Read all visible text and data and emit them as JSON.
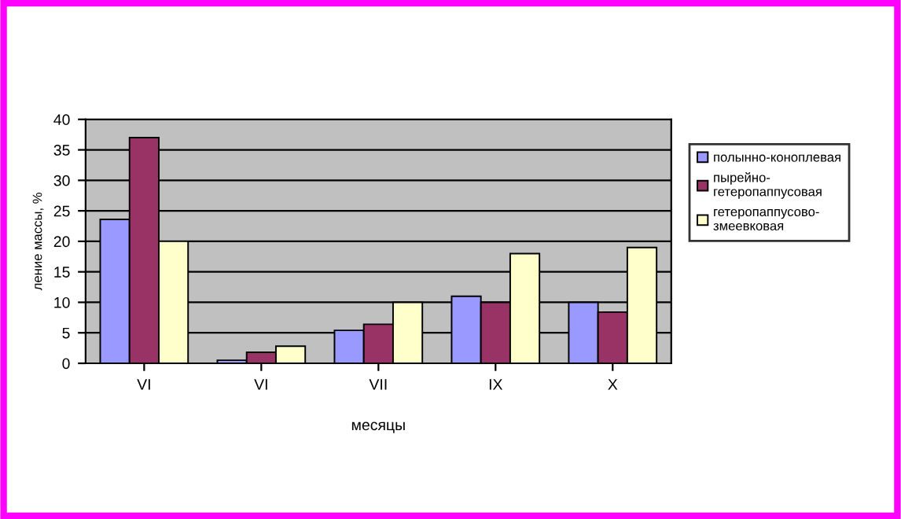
{
  "chart_data": {
    "type": "bar",
    "xlabel": "месяцы",
    "ylabel": "ление массы, %",
    "categories": [
      "VI",
      "VI",
      "VII",
      "IX",
      "X"
    ],
    "series": [
      {
        "name": "полынно-коноплевая",
        "color": "#9999ff",
        "values": [
          23.6,
          0.5,
          5.4,
          11,
          10
        ]
      },
      {
        "name": "пырейно-\nгетеропаппусовая",
        "color": "#993366",
        "values": [
          37,
          1.8,
          6.4,
          10,
          8.4
        ]
      },
      {
        "name": "гетеропаппусово-\nзмеевковая",
        "color": "#ffffcc",
        "values": [
          20,
          2.8,
          10,
          18,
          19
        ]
      }
    ],
    "ylim": [
      0,
      40
    ],
    "yticks": [
      0,
      5,
      10,
      15,
      20,
      25,
      30,
      35,
      40
    ],
    "grid": "y",
    "legend": "right"
  }
}
